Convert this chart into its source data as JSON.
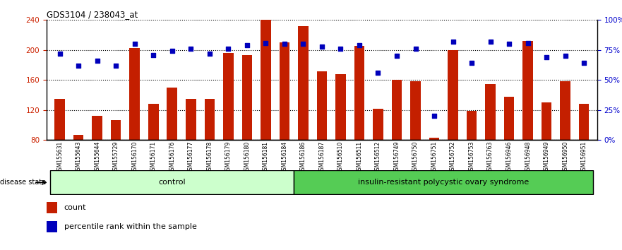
{
  "title": "GDS3104 / 238043_at",
  "samples": [
    "GSM155631",
    "GSM155643",
    "GSM155644",
    "GSM155729",
    "GSM156170",
    "GSM156171",
    "GSM156176",
    "GSM156177",
    "GSM156178",
    "GSM156179",
    "GSM156180",
    "GSM156181",
    "GSM156184",
    "GSM156186",
    "GSM156187",
    "GSM156510",
    "GSM156511",
    "GSM156512",
    "GSM156749",
    "GSM156750",
    "GSM156751",
    "GSM156752",
    "GSM156753",
    "GSM156763",
    "GSM156946",
    "GSM156948",
    "GSM156949",
    "GSM156950",
    "GSM156951"
  ],
  "counts": [
    135,
    87,
    112,
    107,
    203,
    128,
    150,
    135,
    135,
    196,
    193,
    240,
    210,
    232,
    172,
    168,
    205,
    122,
    160,
    158,
    83,
    200,
    119,
    155,
    138,
    212,
    130,
    158,
    128
  ],
  "percentile_ranks": [
    72,
    62,
    66,
    62,
    80,
    71,
    74,
    76,
    72,
    76,
    79,
    81,
    80,
    80,
    78,
    76,
    79,
    56,
    70,
    76,
    20,
    82,
    64,
    82,
    80,
    81,
    69,
    70,
    64
  ],
  "control_count": 13,
  "disease_count": 16,
  "ylim_left": [
    80,
    240
  ],
  "ylim_right": [
    0,
    100
  ],
  "yticks_left": [
    80,
    120,
    160,
    200,
    240
  ],
  "yticks_right": [
    0,
    25,
    50,
    75,
    100
  ],
  "ytick_right_labels": [
    "0%",
    "25%",
    "50%",
    "75%",
    "100%"
  ],
  "bar_color": "#C41F00",
  "dot_color": "#0000BB",
  "bg_color": "#FFFFFF",
  "plot_bg_color": "#FFFFFF",
  "ylabel_left_color": "#CC2200",
  "ylabel_right_color": "#0000CC",
  "control_label": "control",
  "disease_label": "insulin-resistant polycystic ovary syndrome",
  "legend_count_label": "count",
  "legend_percentile_label": "percentile rank within the sample",
  "control_bg": "#CCFFCC",
  "disease_bg": "#55CC55",
  "disease_state_label": "disease state"
}
